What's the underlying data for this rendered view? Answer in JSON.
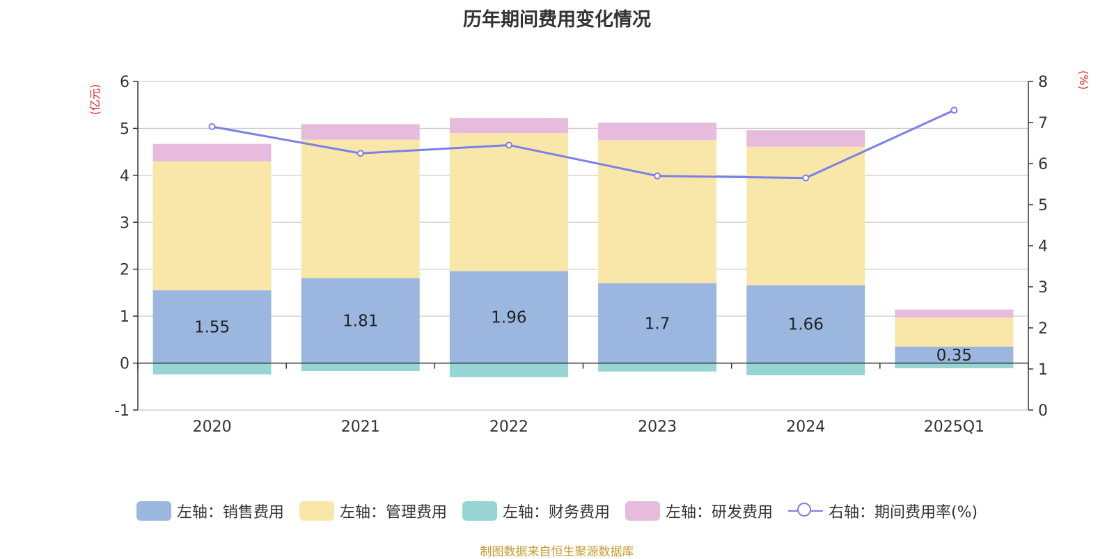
{
  "chart_data": {
    "type": "bar",
    "title": "历年期间费用变化情况",
    "categories": [
      "2020",
      "2021",
      "2022",
      "2023",
      "2024",
      "2025Q1"
    ],
    "left_axis": {
      "unit_label": "(亿元)",
      "ylim": [
        -1,
        6
      ],
      "ticks": [
        -1,
        0,
        1,
        2,
        3,
        4,
        5,
        6
      ]
    },
    "right_axis": {
      "unit_label": "(%)",
      "ylim": [
        0,
        8
      ],
      "ticks": [
        0,
        1,
        2,
        3,
        4,
        5,
        6,
        7,
        8
      ]
    },
    "series": [
      {
        "name": "左轴：销售费用",
        "type": "bar",
        "axis": "left",
        "color": "#9bb7e0",
        "values": [
          1.55,
          1.81,
          1.96,
          1.7,
          1.66,
          0.35
        ],
        "labels": [
          "1.55",
          "1.81",
          "1.96",
          "1.7",
          "1.66",
          "0.35"
        ]
      },
      {
        "name": "左轴：管理费用",
        "type": "bar",
        "axis": "left",
        "color": "#f8e7a8",
        "values": [
          2.75,
          2.95,
          2.94,
          3.05,
          2.95,
          0.62
        ]
      },
      {
        "name": "左轴：财务费用",
        "type": "bar",
        "axis": "left",
        "color": "#97d4d4",
        "values": [
          -0.24,
          -0.17,
          -0.3,
          -0.18,
          -0.26,
          -0.11
        ]
      },
      {
        "name": "左轴：研发费用",
        "type": "bar",
        "axis": "left",
        "color": "#e6bbdc",
        "values": [
          0.37,
          0.33,
          0.32,
          0.37,
          0.35,
          0.17
        ]
      },
      {
        "name": "右轴：期间费用率(%)",
        "type": "line",
        "axis": "right",
        "color": "#7b7fe8",
        "values": [
          6.9,
          6.25,
          6.45,
          5.7,
          5.65,
          7.3
        ]
      }
    ],
    "grid": true
  },
  "source_note": "制图数据来自恒生聚源数据库"
}
